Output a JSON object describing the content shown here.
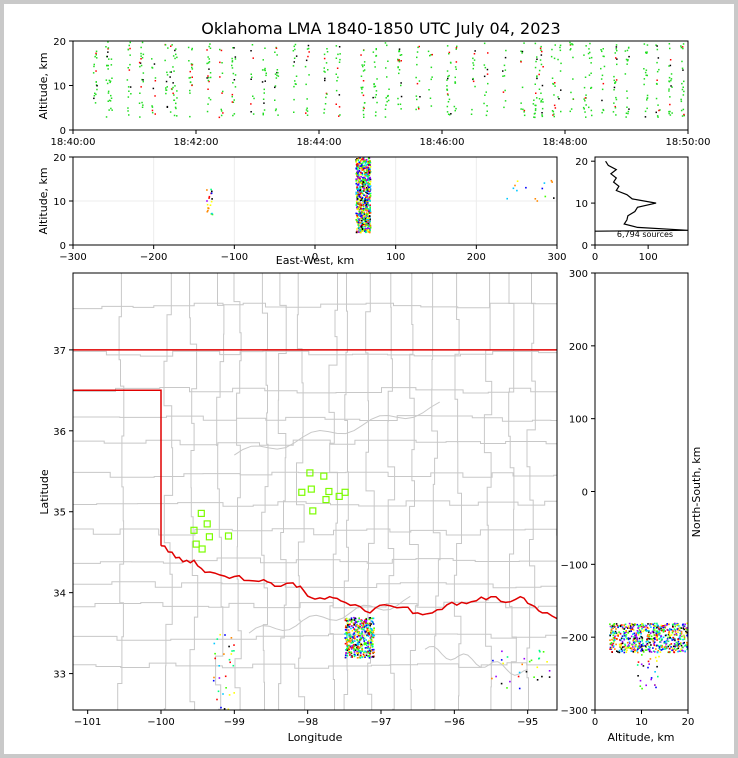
{
  "title": "Oklahoma LMA 1840-1850 UTC July 04, 2023",
  "colors": {
    "frame": "#c9c9c9",
    "state_border": "#e00000",
    "county_lines": "#c8c8c8",
    "station_marker": "#7cfc00",
    "sources_time": "#22dd22",
    "sources_late": "#ff0000"
  },
  "chart_data": [
    {
      "id": "time_altitude",
      "type": "scatter",
      "xlabel": "",
      "ylabel": "Altitude, km",
      "xticks": [
        "18:40:00",
        "18:42:00",
        "18:44:00",
        "18:46:00",
        "18:48:00",
        "18:50:00"
      ],
      "xlim_minutes": [
        0,
        10
      ],
      "yticks": [
        "0",
        "10",
        "20"
      ],
      "ylim": [
        0,
        20
      ],
      "flash_columns_minutes": [
        0.35,
        0.55,
        0.6,
        0.9,
        1.1,
        1.3,
        1.5,
        1.6,
        1.65,
        1.9,
        2.2,
        2.4,
        2.6,
        2.9,
        3.1,
        3.3,
        3.6,
        3.8,
        4.1,
        4.3,
        4.7,
        4.9,
        5.1,
        5.3,
        5.6,
        5.8,
        6.1,
        6.2,
        6.5,
        6.7,
        7.0,
        7.3,
        7.5,
        7.6,
        7.8,
        7.9,
        8.1,
        8.3,
        8.4,
        8.6,
        8.8,
        9.0,
        9.3,
        9.5,
        9.7,
        9.9
      ],
      "altitude_range": [
        3,
        20
      ]
    },
    {
      "id": "eastwest_altitude",
      "type": "scatter",
      "xlabel": "East-West, km",
      "ylabel": "Altitude, km",
      "xticks": [
        "−300",
        "−200",
        "−100",
        "0",
        "100",
        "200",
        "300"
      ],
      "xlim": [
        -300,
        300
      ],
      "yticks": [
        "0",
        "10",
        "20"
      ],
      "ylim": [
        0,
        20
      ],
      "clusters": [
        {
          "x": [
            50,
            68
          ],
          "alt": [
            3,
            20
          ],
          "density": "high"
        },
        {
          "x": [
            -135,
            -128
          ],
          "alt": [
            7,
            13
          ],
          "density": "low"
        },
        {
          "x": [
            235,
            300
          ],
          "alt": [
            10,
            15
          ],
          "density": "sparse"
        }
      ]
    },
    {
      "id": "altitude_histogram",
      "type": "line",
      "annotation": "6,794 sources",
      "xticks": [
        "0",
        "100"
      ],
      "xlim": [
        0,
        175
      ],
      "yticks": [
        "0",
        "10",
        "20"
      ],
      "ylim": [
        0,
        21
      ],
      "profile": [
        [
          175,
          3.5
        ],
        [
          80,
          4.2
        ],
        [
          55,
          5.0
        ],
        [
          60,
          6.0
        ],
        [
          62,
          7.0
        ],
        [
          75,
          8.0
        ],
        [
          80,
          9.0
        ],
        [
          115,
          10.0
        ],
        [
          70,
          11.0
        ],
        [
          60,
          12.0
        ],
        [
          40,
          13.0
        ],
        [
          45,
          14.0
        ],
        [
          35,
          15.0
        ],
        [
          40,
          16.0
        ],
        [
          30,
          17.0
        ],
        [
          40,
          18.0
        ],
        [
          25,
          19.0
        ],
        [
          20,
          20.0
        ]
      ]
    },
    {
      "id": "plan_view",
      "type": "scatter",
      "xlabel": "Longitude",
      "ylabel": "Latitude",
      "xticks": [
        "−101",
        "−100",
        "−99",
        "−98",
        "−97",
        "−96",
        "−95"
      ],
      "xlim": [
        -101.2,
        -94.6
      ],
      "yticks": [
        "33",
        "34",
        "35",
        "36",
        "37"
      ],
      "ylim": [
        32.55,
        37.95
      ],
      "stations": [
        [
          -99.45,
          34.98
        ],
        [
          -99.37,
          34.85
        ],
        [
          -99.55,
          34.77
        ],
        [
          -99.34,
          34.69
        ],
        [
          -99.08,
          34.7
        ],
        [
          -99.52,
          34.6
        ],
        [
          -99.44,
          34.54
        ],
        [
          -97.97,
          35.48
        ],
        [
          -97.78,
          35.44
        ],
        [
          -98.08,
          35.24
        ],
        [
          -97.95,
          35.28
        ],
        [
          -97.71,
          35.25
        ],
        [
          -97.49,
          35.24
        ],
        [
          -97.57,
          35.19
        ],
        [
          -97.75,
          35.15
        ],
        [
          -97.93,
          35.01
        ]
      ],
      "source_clusters": [
        {
          "lon": [
            -97.5,
            -97.1
          ],
          "lat": [
            33.2,
            33.7
          ],
          "density": "high"
        },
        {
          "lon": [
            -99.3,
            -99.0
          ],
          "lat": [
            32.55,
            33.5
          ],
          "density": "sparse"
        },
        {
          "lon": [
            -95.5,
            -94.7
          ],
          "lat": [
            32.8,
            33.3
          ],
          "density": "sparse"
        }
      ]
    },
    {
      "id": "altitude_northsouth",
      "type": "scatter",
      "xlabel": "Altitude, km",
      "ylabel": "North-South, km",
      "xticks": [
        "0",
        "10",
        "20"
      ],
      "xlim": [
        0,
        20
      ],
      "yticks": [
        "−300",
        "−200",
        "−100",
        "0",
        "100",
        "200",
        "300"
      ],
      "ylim": [
        -300,
        300
      ],
      "clusters": [
        {
          "alt": [
            3,
            20
          ],
          "y": [
            -220,
            -180
          ],
          "density": "high"
        },
        {
          "alt": [
            9,
            14
          ],
          "y": [
            -270,
            -220
          ],
          "density": "sparse"
        }
      ]
    }
  ]
}
